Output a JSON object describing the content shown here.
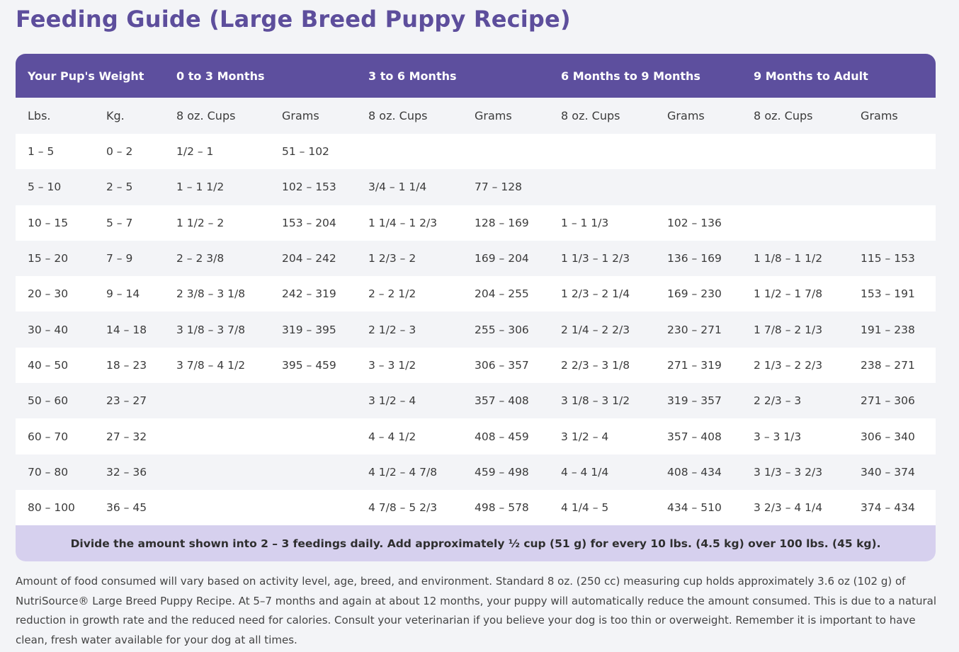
{
  "title": "Feeding Guide (Large Breed Puppy Recipe)",
  "table": {
    "group_headers": [
      "Your Pup's Weight",
      "0 to 3 Months",
      "3 to 6 Months",
      "6 Months to 9 Months",
      "9 Months to Adult"
    ],
    "sub_headers": [
      "Lbs.",
      "Kg.",
      "8 oz. Cups",
      "Grams",
      "8 oz. Cups",
      "Grams",
      "8 oz. Cups",
      "Grams",
      "8 oz. Cups",
      "Grams"
    ],
    "rows": [
      [
        "1 – 5",
        "0 – 2",
        "1/2 – 1",
        "51 – 102",
        "",
        "",
        "",
        "",
        "",
        ""
      ],
      [
        "5 – 10",
        "2 – 5",
        "1 – 1 1/2",
        "102 – 153",
        "3/4 – 1 1/4",
        "77 – 128",
        "",
        "",
        "",
        ""
      ],
      [
        "10 – 15",
        "5 – 7",
        "1 1/2 – 2",
        "153 – 204",
        "1 1/4 – 1 2/3",
        "128 – 169",
        "1 – 1 1/3",
        "102 – 136",
        "",
        ""
      ],
      [
        "15 – 20",
        "7 – 9",
        "2 – 2 3/8",
        "204 – 242",
        "1 2/3 – 2",
        "169 – 204",
        "1 1/3 – 1 2/3",
        "136 – 169",
        "1 1/8 – 1 1/2",
        "115 – 153"
      ],
      [
        "20 – 30",
        "9 – 14",
        "2 3/8 – 3 1/8",
        "242 – 319",
        "2 – 2 1/2",
        "204 – 255",
        "1 2/3 – 2 1/4",
        "169 – 230",
        "1 1/2 – 1 7/8",
        "153 – 191"
      ],
      [
        "30 – 40",
        "14 – 18",
        "3 1/8 – 3 7/8",
        "319 – 395",
        "2 1/2 – 3",
        "255 – 306",
        "2 1/4 – 2 2/3",
        "230 – 271",
        "1 7/8 – 2 1/3",
        "191 – 238"
      ],
      [
        "40 – 50",
        "18 – 23",
        "3 7/8 – 4 1/2",
        "395 – 459",
        "3 – 3 1/2",
        "306 – 357",
        "2 2/3 – 3 1/8",
        "271 – 319",
        "2 1/3 – 2 2/3",
        "238 – 271"
      ],
      [
        "50 – 60",
        "23 – 27",
        "",
        "",
        "3 1/2 – 4",
        "357 – 408",
        "3 1/8 – 3 1/2",
        "319 – 357",
        "2 2/3 – 3",
        "271 – 306"
      ],
      [
        "60 – 70",
        "27 – 32",
        "",
        "",
        "4 – 4 1/2",
        "408 – 459",
        "3 1/2 – 4",
        "357 – 408",
        "3 – 3 1/3",
        "306 – 340"
      ],
      [
        "70 – 80",
        "32 – 36",
        "",
        "",
        "4 1/2 – 4 7/8",
        "459 – 498",
        "4 – 4 1/4",
        "408 – 434",
        "3 1/3 – 3 2/3",
        "340 – 374"
      ],
      [
        "80 – 100",
        "36 – 45",
        "",
        "",
        "4 7/8 – 5 2/3",
        "498 – 578",
        "4 1/4 – 5",
        "434 – 510",
        "3 2/3 – 4 1/4",
        "374 – 434"
      ]
    ],
    "footer": "Divide the amount shown into 2 – 3 feedings daily. Add approximately ½ cup (51 g) for every 10 lbs. (4.5 kg) over 100 lbs. (45 kg)."
  },
  "note": "Amount of food consumed will vary based on activity level, age, breed, and environment. Standard 8 oz. (250 cc) measuring cup holds approximately 3.6 oz (102 g) of NutriSource® Large Breed Puppy Recipe. At 5–7 months and again at about 12 months, your puppy will automatically reduce the amount consumed. This is due to a natural reduction in growth rate and the reduced need for calories. Consult your veterinarian if you believe your dog is too thin or overweight. Remember it is important to have clean, fresh water available for your dog at all times.",
  "colors": {
    "header_bg": "#5d4f9e",
    "title": "#5d4e9c",
    "footer_bg": "#d6d0ee",
    "page_bg": "#f3f4f7"
  }
}
